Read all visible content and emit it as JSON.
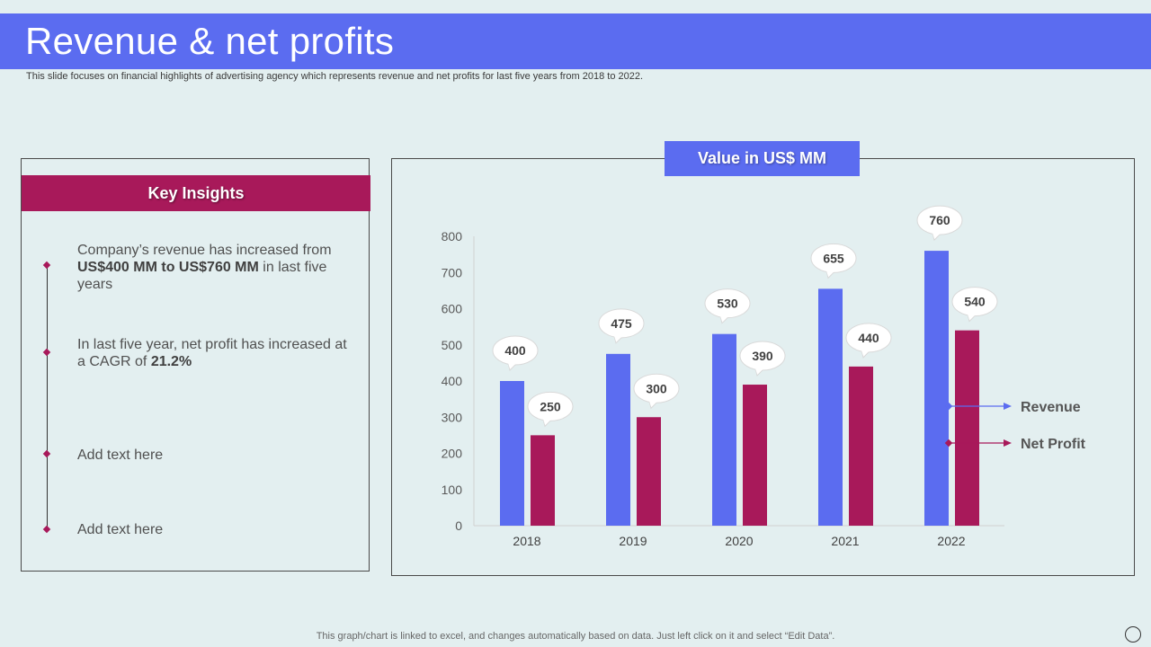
{
  "header": {
    "title": "Revenue & net profits",
    "subtitle": "This slide focuses on financial highlights of advertising agency which represents revenue and net profits for last five years from 2018 to 2022."
  },
  "insights": {
    "title": "Key Insights",
    "items": [
      {
        "pre": "Company’s revenue has increased from ",
        "bold": "US$400 MM to US$760 MM",
        "post": " in last five years"
      },
      {
        "pre": "In last five year, net profit has increased at a CAGR of ",
        "bold": "21.2%",
        "post": ""
      },
      {
        "pre": "Add text here",
        "bold": "",
        "post": ""
      },
      {
        "pre": "Add text here",
        "bold": "",
        "post": ""
      }
    ]
  },
  "chart_data": {
    "type": "bar",
    "title": "Value in US$ MM",
    "categories": [
      "2018",
      "2019",
      "2020",
      "2021",
      "2022"
    ],
    "series": [
      {
        "name": "Revenue",
        "values": [
          400,
          475,
          530,
          655,
          760
        ],
        "color": "#5b6cf0"
      },
      {
        "name": "Net Profit",
        "values": [
          250,
          300,
          390,
          440,
          540
        ],
        "color": "#a8195a"
      }
    ],
    "yticks": [
      0,
      100,
      200,
      300,
      400,
      500,
      600,
      700,
      800
    ],
    "ylim": [
      0,
      800
    ],
    "xlabel": "",
    "ylabel": "",
    "legend_position": "right"
  },
  "footer": {
    "note": "This graph/chart is linked to excel, and changes automatically based on data. Just left click on it and select “Edit Data”."
  }
}
